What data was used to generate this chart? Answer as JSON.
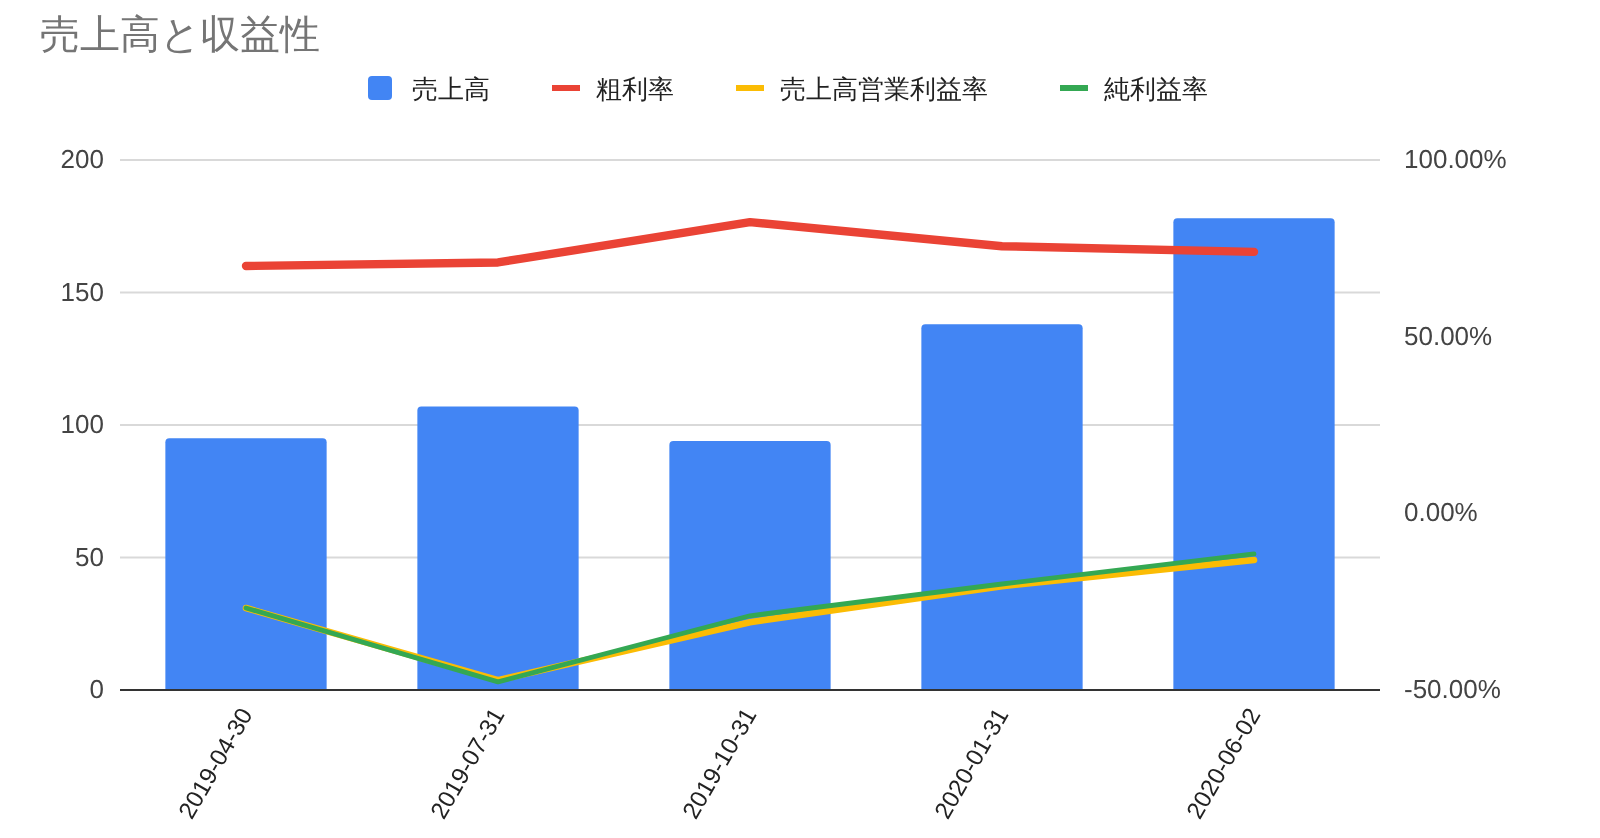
{
  "chart_data": {
    "type": "bar",
    "title": "売上高と収益性",
    "categories": [
      "2019-04-30",
      "2019-07-31",
      "2019-10-31",
      "2020-01-31",
      "2020-06-02"
    ],
    "series": [
      {
        "name": "売上高",
        "color": "#4285f4",
        "values": [
          95,
          107,
          94,
          138,
          178
        ]
      },
      {
        "name": "粗利率",
        "type": "line",
        "axis": "y2",
        "color": "#ea4335",
        "values": [
          70,
          71,
          82.4,
          75.6,
          74
        ]
      },
      {
        "name": "売上高営業利益率",
        "type": "line",
        "axis": "y2",
        "color": "#fbbc04",
        "values": [
          -26.8,
          -47.2,
          -30.8,
          -20.6,
          -13.2
        ]
      },
      {
        "name": "純利益率",
        "type": "line",
        "axis": "y2",
        "color": "#34a853",
        "values": [
          -26.8,
          -47.7,
          -29,
          -20,
          -11.5
        ]
      }
    ],
    "ylim": [
      0,
      200
    ],
    "yticks": [
      0,
      50,
      100,
      150,
      200
    ],
    "y2lim": [
      -50,
      100
    ],
    "y2ticks": [
      {
        "value": -50,
        "label": "-50.00%"
      },
      {
        "value": 0,
        "label": "0.00%"
      },
      {
        "value": 50,
        "label": "50.00%"
      },
      {
        "value": 100,
        "label": "100.00%"
      }
    ],
    "grid": "y",
    "legend": "top",
    "marker": "none",
    "line_style": "solid"
  }
}
